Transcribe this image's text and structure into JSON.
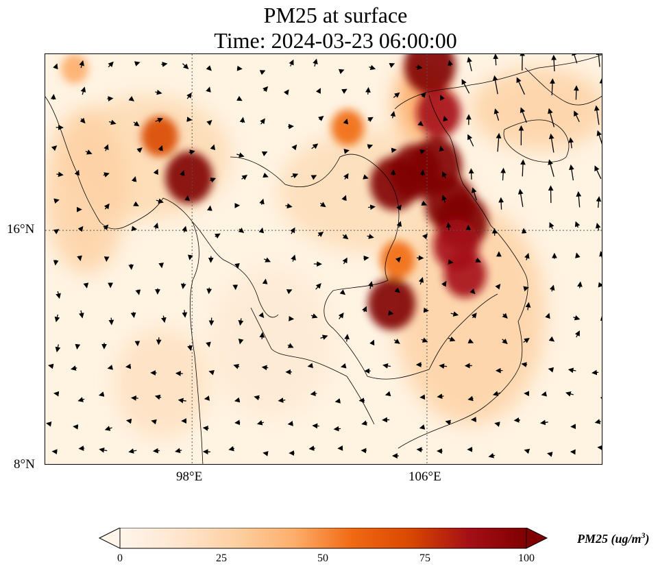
{
  "title": {
    "line1": "PM25 at surface",
    "line2": "Time: 2024-03-23 06:00:00"
  },
  "map": {
    "variable": "PM25",
    "lon_range": [
      93.0,
      112.0
    ],
    "lat_range": [
      8.0,
      22.0
    ],
    "gridlines": {
      "lon": [
        98,
        106
      ],
      "lat": [
        16
      ]
    },
    "lat_ticks": [
      "16°N",
      "8°N"
    ],
    "lon_ticks": [
      "98°E",
      "106°E"
    ],
    "hotspots": [
      {
        "lon": 106.1,
        "lat": 21.6,
        "value": 98
      },
      {
        "lon": 106.3,
        "lat": 18.2,
        "value": 100
      },
      {
        "lon": 105.6,
        "lat": 18.0,
        "value": 95
      },
      {
        "lon": 104.9,
        "lat": 17.6,
        "value": 92
      },
      {
        "lon": 107.2,
        "lat": 16.3,
        "value": 100
      },
      {
        "lon": 106.8,
        "lat": 16.9,
        "value": 96
      },
      {
        "lon": 107.0,
        "lat": 15.5,
        "value": 85
      },
      {
        "lon": 104.8,
        "lat": 13.5,
        "value": 88
      },
      {
        "lon": 106.4,
        "lat": 20.0,
        "value": 80
      },
      {
        "lon": 97.9,
        "lat": 17.8,
        "value": 88
      },
      {
        "lon": 96.9,
        "lat": 19.2,
        "value": 60
      },
      {
        "lon": 107.3,
        "lat": 14.5,
        "value": 75
      },
      {
        "lon": 103.3,
        "lat": 19.5,
        "value": 50
      },
      {
        "lon": 94.0,
        "lat": 21.5,
        "value": 35
      },
      {
        "lon": 105.0,
        "lat": 15.0,
        "value": 55
      }
    ]
  },
  "colorbar": {
    "min": 0,
    "max": 100,
    "ticks": [
      "0",
      "25",
      "50",
      "75",
      "100"
    ],
    "colors": [
      "#fff5eb",
      "#fee6ce",
      "#fdd0a2",
      "#fdae6b",
      "#f16913",
      "#d94801",
      "#a50f15",
      "#7f0000"
    ],
    "label": "PM25 (ug/m",
    "label_sup": "3",
    "label_close": ")"
  }
}
